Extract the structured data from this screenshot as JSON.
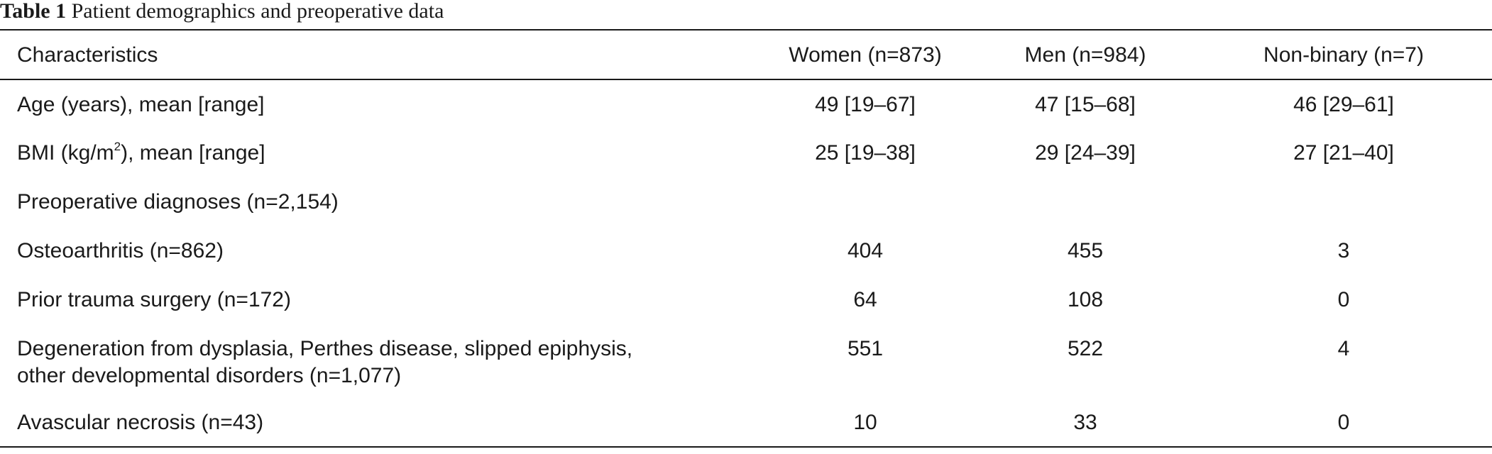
{
  "caption": {
    "label": "Table 1",
    "text": "Patient demographics and preoperative data"
  },
  "table": {
    "headers": {
      "characteristics": "Characteristics",
      "women": "Women (n=873)",
      "men": "Men (n=984)",
      "nonbinary": "Non-binary (n=7)"
    },
    "rows": [
      {
        "label": "Age (years), mean [range]",
        "women": "49 [19–67]",
        "men": "47 [15–68]",
        "nonbinary": "46 [29–61]"
      },
      {
        "label_pre": "BMI (kg/m",
        "label_sup": "2",
        "label_post": "), mean [range]",
        "women": "25 [19–38]",
        "men": "29 [24–39]",
        "nonbinary": "27 [21–40]"
      },
      {
        "label": "Preoperative diagnoses (n=2,154)",
        "women": "",
        "men": "",
        "nonbinary": ""
      },
      {
        "label": "Osteoarthritis (n=862)",
        "women": "404",
        "men": "455",
        "nonbinary": "3"
      },
      {
        "label": "Prior trauma surgery (n=172)",
        "women": "64",
        "men": "108",
        "nonbinary": "0"
      },
      {
        "label_line1": "Degeneration from dysplasia, Perthes disease, slipped epiphysis,",
        "label_line2": "other developmental disorders (n=1,077)",
        "women": "551",
        "men": "522",
        "nonbinary": "4"
      },
      {
        "label": "Avascular necrosis (n=43)",
        "women": "10",
        "men": "33",
        "nonbinary": "0"
      }
    ]
  }
}
